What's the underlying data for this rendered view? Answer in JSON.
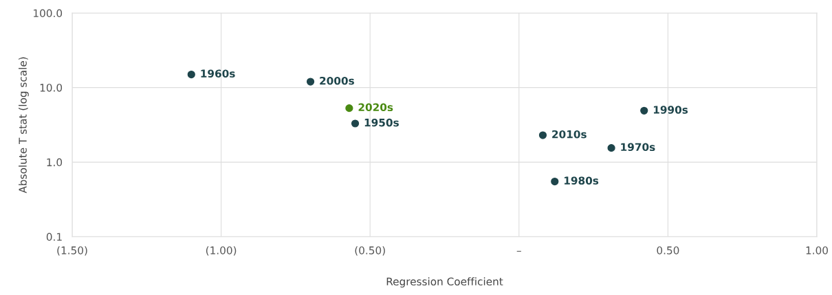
{
  "chart_data": {
    "type": "scatter",
    "xlabel": "Regression Coefficient",
    "ylabel": "Absolute T stat (log scale)",
    "log": "y",
    "grid": true,
    "legend": false,
    "marker": "circle",
    "xlim": [
      -1.5,
      1.0
    ],
    "xticks": [
      {
        "value": -1.5,
        "label": "(1.50)"
      },
      {
        "value": -1.0,
        "label": "(1.00)"
      },
      {
        "value": -0.5,
        "label": "(0.50)"
      },
      {
        "value": 0,
        "label": "–"
      },
      {
        "value": 0.5,
        "label": "0.50"
      },
      {
        "value": 1.0,
        "label": "1.00"
      }
    ],
    "ylim": [
      0.1,
      100
    ],
    "yticks": [
      {
        "value": 0.1,
        "label": "0.1"
      },
      {
        "value": 1,
        "label": "1.0"
      },
      {
        "value": 10,
        "label": "10.0"
      },
      {
        "value": 100,
        "label": "100.0"
      }
    ],
    "series": [
      {
        "name": "1960s",
        "color": "#1e454b",
        "x": [
          -1.1
        ],
        "values": [
          15
        ]
      },
      {
        "name": "2000s",
        "color": "#1e454b",
        "x": [
          -0.7
        ],
        "values": [
          12
        ]
      },
      {
        "name": "2020s",
        "color": "#4a8a12",
        "x": [
          -0.57
        ],
        "values": [
          5.3
        ]
      },
      {
        "name": "1950s",
        "color": "#1e454b",
        "x": [
          -0.55
        ],
        "values": [
          3.3
        ]
      },
      {
        "name": "2010s",
        "color": "#1e454b",
        "x": [
          0.08
        ],
        "values": [
          2.3
        ]
      },
      {
        "name": "1970s",
        "color": "#1e454b",
        "x": [
          0.31
        ],
        "values": [
          1.55
        ]
      },
      {
        "name": "1980s",
        "color": "#1e454b",
        "x": [
          0.12
        ],
        "values": [
          0.55
        ]
      },
      {
        "name": "1990s",
        "color": "#1e454b",
        "x": [
          0.42
        ],
        "values": [
          4.9
        ]
      }
    ]
  }
}
